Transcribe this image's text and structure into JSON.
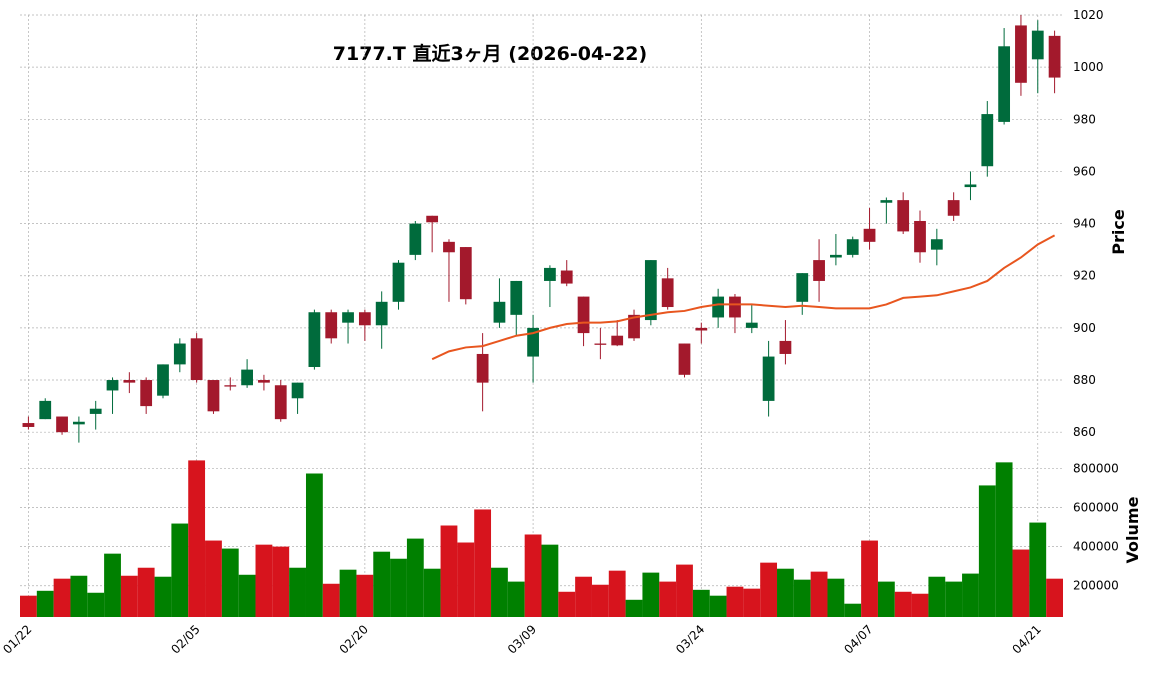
{
  "chart_data": {
    "type": "candlestick",
    "title": "7177.T 直近3ヶ月 (2026-04-22)",
    "categories": [
      "01/22",
      null,
      null,
      null,
      null,
      null,
      null,
      null,
      null,
      null,
      "02/05",
      null,
      null,
      null,
      null,
      null,
      null,
      null,
      null,
      null,
      "02/20",
      null,
      null,
      null,
      null,
      null,
      null,
      null,
      null,
      null,
      "03/09",
      null,
      null,
      null,
      null,
      null,
      null,
      null,
      null,
      null,
      "03/24",
      null,
      null,
      null,
      null,
      null,
      null,
      null,
      null,
      null,
      "04/07",
      null,
      null,
      null,
      null,
      null,
      null,
      null,
      null,
      null,
      "04/21",
      null
    ],
    "open": [
      863.5,
      865,
      866,
      863,
      867,
      876,
      880,
      880,
      874,
      886,
      896,
      880,
      878,
      878,
      880,
      878,
      873,
      885,
      906,
      902,
      906,
      901,
      910,
      928,
      943,
      933,
      931,
      890,
      902,
      905,
      889,
      918,
      922,
      912,
      894,
      897,
      905,
      903,
      919,
      894,
      900,
      904,
      912,
      900,
      872,
      895,
      910,
      926,
      927,
      928,
      938,
      948,
      949,
      941,
      930,
      949,
      954,
      962,
      979,
      1016,
      1003,
      1012
    ],
    "high": [
      866,
      873,
      866,
      866,
      872,
      881,
      883,
      881,
      886,
      896,
      898,
      880,
      881,
      888,
      882,
      880,
      879,
      907,
      907,
      907,
      907,
      914,
      926,
      941,
      943,
      934,
      931,
      898,
      919,
      918,
      905,
      924,
      926,
      912,
      900,
      903,
      907,
      926,
      923,
      894,
      902,
      915,
      913,
      909,
      895,
      903,
      921,
      934,
      936,
      935,
      946,
      950,
      952,
      945,
      938,
      952,
      960,
      987,
      1015,
      1020,
      1018,
      1014
    ],
    "low": [
      861,
      865,
      859,
      856,
      861,
      867,
      875,
      867,
      873,
      883,
      879,
      867,
      876,
      877,
      876,
      864,
      867,
      884,
      894,
      894,
      895,
      892,
      907,
      926,
      929,
      910,
      909,
      868,
      900,
      897,
      879,
      908,
      916,
      893,
      888,
      893,
      895,
      901,
      907,
      881,
      894,
      900,
      898,
      898,
      866,
      886,
      905,
      910,
      924,
      927,
      930,
      940,
      936,
      925,
      924,
      941,
      949,
      958,
      978,
      989,
      990,
      990
    ],
    "close": [
      862,
      872,
      860,
      864,
      869,
      880,
      879,
      870,
      886,
      894,
      880,
      868,
      877.5,
      884,
      879,
      865,
      879,
      906,
      896,
      906,
      901,
      910,
      925,
      940,
      940.5,
      929,
      911,
      879,
      910,
      918,
      900,
      923,
      917,
      898,
      893.5,
      893.3,
      896,
      926,
      908,
      882,
      899,
      912,
      904,
      902,
      889,
      890,
      921,
      918,
      928,
      934,
      933,
      949,
      937,
      929,
      934,
      943,
      955,
      982,
      1008,
      994,
      1014,
      996
    ],
    "volume": [
      149000,
      174000,
      236000,
      251000,
      164000,
      364000,
      251000,
      292000,
      246000,
      518000,
      841000,
      431000,
      390000,
      256000,
      410000,
      400000,
      292000,
      774000,
      210000,
      282000,
      256000,
      374000,
      338000,
      441000,
      287000,
      508000,
      421000,
      590000,
      292000,
      221000,
      462000,
      410000,
      169000,
      246000,
      205000,
      277000,
      128000,
      267000,
      221000,
      308000,
      179000,
      149000,
      195000,
      185000,
      318000,
      287000,
      231000,
      272000,
      236000,
      108000,
      431000,
      221000,
      169000,
      159000,
      246000,
      221000,
      262000,
      713000,
      831000,
      385000,
      523000,
      236000
    ],
    "ma": {
      "color": "#e8561f",
      "values": [
        null,
        null,
        null,
        null,
        null,
        null,
        null,
        null,
        null,
        null,
        null,
        null,
        null,
        null,
        null,
        null,
        null,
        null,
        null,
        null,
        null,
        null,
        null,
        null,
        888,
        891,
        892.5,
        893,
        895,
        897,
        898,
        900,
        901.5,
        902,
        902,
        902.5,
        904,
        905,
        906,
        906.5,
        908,
        909,
        909,
        909,
        908.5,
        908,
        908.5,
        908,
        907.5,
        907.5,
        907.5,
        909,
        911.5,
        912,
        912.5,
        914,
        915.5,
        918,
        923,
        927,
        932,
        935.5
      ]
    },
    "up_color": "#006b3c",
    "down_color": "#a3192c",
    "volume_up_color": "#008000",
    "volume_down_color": "#d7141d",
    "ylabel": "Price",
    "ylim": [
      857,
      1020
    ],
    "yticks": [
      860,
      880,
      900,
      920,
      940,
      960,
      980,
      1000,
      1020
    ],
    "volume_label": "Volume",
    "volume_ylim": [
      40000,
      930000
    ],
    "volume_yticks": [
      200000,
      400000,
      600000,
      800000
    ],
    "grid": true
  }
}
